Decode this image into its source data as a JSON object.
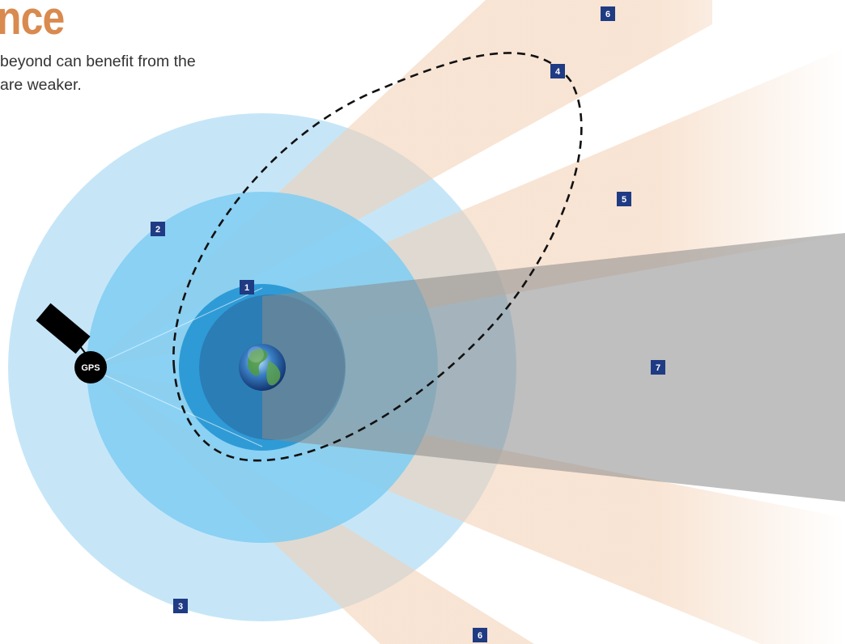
{
  "title": "nce",
  "intro_lines": [
    "beyond can benefit from the",
    "are weaker."
  ],
  "satellite": {
    "label": "GPS",
    "icon": "gps-satellite-icon"
  },
  "planet": {
    "icon": "earth-globe-icon"
  },
  "region_labels": [
    "1",
    "2",
    "3",
    "4",
    "5",
    "6",
    "6",
    "7"
  ],
  "colors": {
    "title": "#d98a4f",
    "label_bg": "#1f3b84",
    "label_text": "#ffffff",
    "outer_zone": "#c6e6f8",
    "middle_zone": "#7fcdf3",
    "inner_zone": "#2f9bd6",
    "earth_shadow": "#8b8b8b",
    "beam": "#f3cfb1",
    "orbit": "#111111"
  }
}
